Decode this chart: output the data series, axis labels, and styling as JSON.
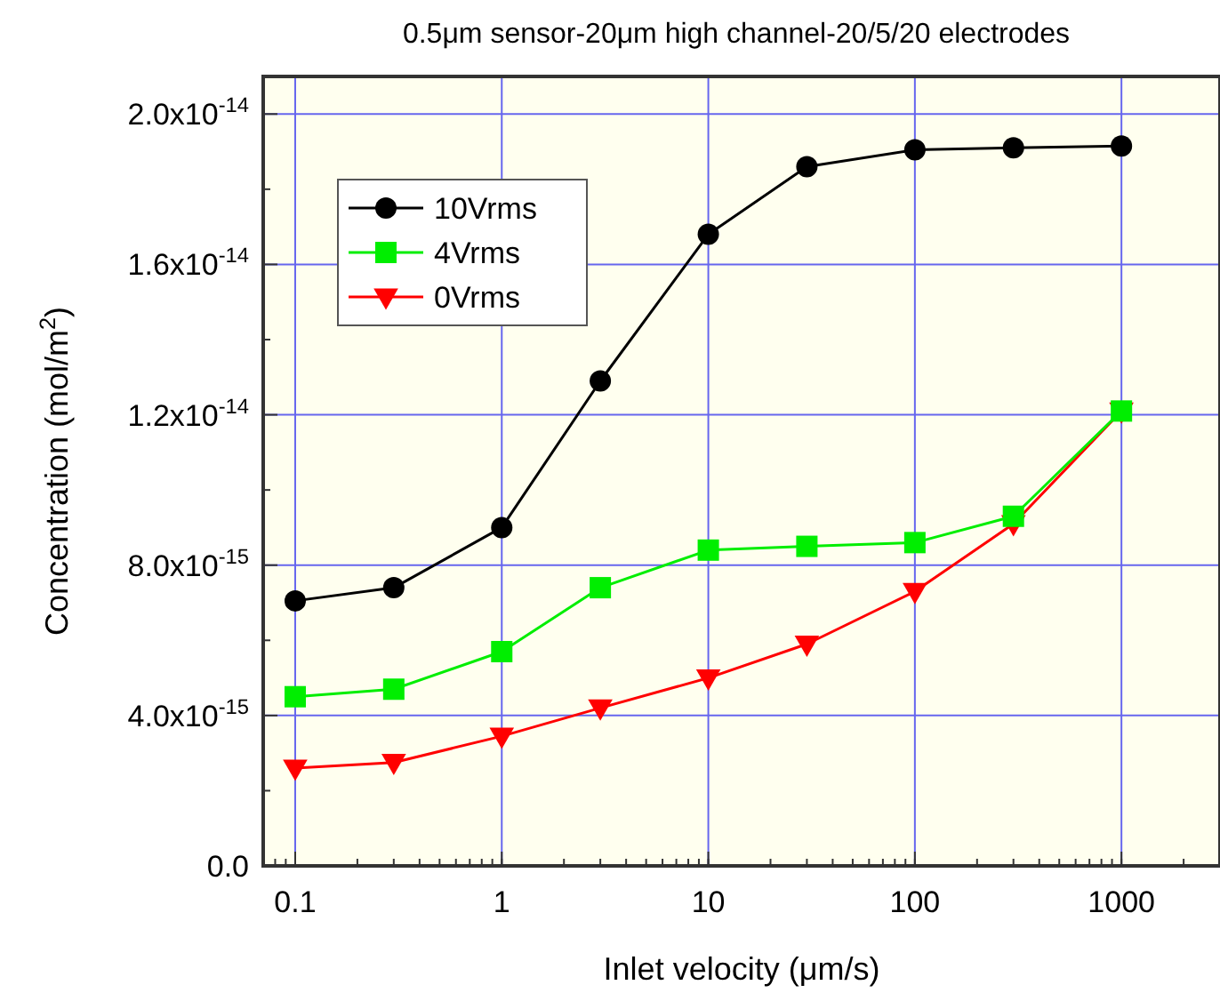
{
  "chart_data": {
    "type": "line",
    "title": "0.5μm sensor-20μm high channel-20/5/20 electrodes",
    "xlabel": "Inlet velocity (μm/s)",
    "ylabel": "Concentration (mol/m$^{2}$)",
    "log": "x",
    "grid": true,
    "legend": "top left",
    "line_style": "solid",
    "x": [
      0.1,
      0.3,
      1,
      3,
      10,
      30,
      100,
      300,
      1000
    ],
    "xlim": [
      0.07,
      3000
    ],
    "xticks": [
      0.1,
      1,
      10,
      100,
      1000
    ],
    "ylim": [
      0,
      2.1e-14
    ],
    "yticks": [
      {
        "value": 0,
        "label": "0.0"
      },
      {
        "value": 4e-15,
        "label": "4.0x10$^{-15}$"
      },
      {
        "value": 8e-15,
        "label": "8.0x10$^{-15}$"
      },
      {
        "value": 1.2e-14,
        "label": "1.2x10$^{-14}$"
      },
      {
        "value": 1.6e-14,
        "label": "1.6x10$^{-14}$"
      },
      {
        "value": 2e-14,
        "label": "2.0x10$^{-14}$"
      }
    ],
    "series": [
      {
        "name": "10Vrms",
        "color": "#000000",
        "marker": "circle",
        "values": [
          7.05e-15,
          7.4e-15,
          9e-15,
          1.29e-14,
          1.68e-14,
          1.86e-14,
          1.905e-14,
          1.91e-14,
          1.915e-14
        ]
      },
      {
        "name": "4Vrms",
        "color": "#00ee00",
        "marker": "square",
        "values": [
          4.5e-15,
          4.7e-15,
          5.7e-15,
          7.4e-15,
          8.4e-15,
          8.5e-15,
          8.6e-15,
          9.3e-15,
          1.21e-14
        ]
      },
      {
        "name": "0Vrms",
        "color": "#ff0000",
        "marker": "triangle",
        "values": [
          2.6e-15,
          2.75e-15,
          3.45e-15,
          4.2e-15,
          5e-15,
          5.9e-15,
          7.3e-15,
          9.1e-15,
          1.21e-14
        ]
      }
    ]
  }
}
